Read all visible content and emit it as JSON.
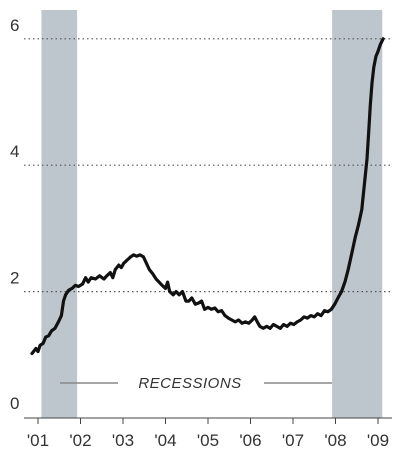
{
  "chart_data": {
    "type": "line",
    "title": "",
    "xlabel": "",
    "ylabel": "",
    "ylim": [
      0,
      6.2
    ],
    "xlim": [
      2000.9,
      2009.25
    ],
    "grid": "dotted horizontal lines at y-ticks 2, 4, 6",
    "y_ticks": [
      {
        "value": 0,
        "label": "0"
      },
      {
        "value": 2,
        "label": "2"
      },
      {
        "value": 4,
        "label": "4"
      },
      {
        "value": 6,
        "label": "6"
      }
    ],
    "x_ticks": [
      {
        "value": 2001,
        "label": "'01"
      },
      {
        "value": 2002,
        "label": "'02"
      },
      {
        "value": 2003,
        "label": "'03"
      },
      {
        "value": 2004,
        "label": "'04"
      },
      {
        "value": 2005,
        "label": "'05"
      },
      {
        "value": 2006,
        "label": "'06"
      },
      {
        "value": 2007,
        "label": "'07"
      },
      {
        "value": 2008,
        "label": "'08"
      },
      {
        "value": 2009,
        "label": "'09"
      }
    ],
    "recessions": [
      {
        "start": 2001.08,
        "end": 2001.92
      },
      {
        "start": 2007.92,
        "end": 2009.1
      }
    ],
    "recession_label": "RECESSIONS",
    "colors": {
      "line": "#111111",
      "recession": "#bcc6cc",
      "grid": "#555555",
      "text": "#333333"
    },
    "series": [
      {
        "values": [
          [
            2000.86,
            1.02
          ],
          [
            2000.95,
            1.1
          ],
          [
            2001.0,
            1.05
          ],
          [
            2001.05,
            1.15
          ],
          [
            2001.12,
            1.18
          ],
          [
            2001.18,
            1.28
          ],
          [
            2001.25,
            1.3
          ],
          [
            2001.32,
            1.38
          ],
          [
            2001.4,
            1.42
          ],
          [
            2001.48,
            1.52
          ],
          [
            2001.55,
            1.62
          ],
          [
            2001.6,
            1.85
          ],
          [
            2001.65,
            1.95
          ],
          [
            2001.72,
            2.02
          ],
          [
            2001.8,
            2.05
          ],
          [
            2001.88,
            2.1
          ],
          [
            2001.95,
            2.08
          ],
          [
            2002.05,
            2.12
          ],
          [
            2002.12,
            2.22
          ],
          [
            2002.18,
            2.15
          ],
          [
            2002.25,
            2.22
          ],
          [
            2002.35,
            2.2
          ],
          [
            2002.45,
            2.25
          ],
          [
            2002.55,
            2.2
          ],
          [
            2002.62,
            2.25
          ],
          [
            2002.7,
            2.3
          ],
          [
            2002.76,
            2.22
          ],
          [
            2002.82,
            2.35
          ],
          [
            2002.9,
            2.42
          ],
          [
            2002.96,
            2.38
          ],
          [
            2003.02,
            2.45
          ],
          [
            2003.1,
            2.5
          ],
          [
            2003.18,
            2.55
          ],
          [
            2003.25,
            2.58
          ],
          [
            2003.32,
            2.56
          ],
          [
            2003.4,
            2.58
          ],
          [
            2003.48,
            2.55
          ],
          [
            2003.55,
            2.45
          ],
          [
            2003.62,
            2.35
          ],
          [
            2003.7,
            2.28
          ],
          [
            2003.78,
            2.2
          ],
          [
            2003.85,
            2.15
          ],
          [
            2003.92,
            2.1
          ],
          [
            2004.0,
            2.05
          ],
          [
            2004.05,
            2.15
          ],
          [
            2004.1,
            2.0
          ],
          [
            2004.18,
            1.95
          ],
          [
            2004.25,
            2.0
          ],
          [
            2004.32,
            1.95
          ],
          [
            2004.4,
            2.0
          ],
          [
            2004.48,
            1.85
          ],
          [
            2004.55,
            1.85
          ],
          [
            2004.62,
            1.9
          ],
          [
            2004.7,
            1.8
          ],
          [
            2004.78,
            1.82
          ],
          [
            2004.85,
            1.85
          ],
          [
            2004.92,
            1.72
          ],
          [
            2005.0,
            1.75
          ],
          [
            2005.08,
            1.72
          ],
          [
            2005.16,
            1.74
          ],
          [
            2005.24,
            1.68
          ],
          [
            2005.32,
            1.7
          ],
          [
            2005.4,
            1.62
          ],
          [
            2005.48,
            1.58
          ],
          [
            2005.56,
            1.55
          ],
          [
            2005.64,
            1.52
          ],
          [
            2005.72,
            1.55
          ],
          [
            2005.8,
            1.5
          ],
          [
            2005.88,
            1.52
          ],
          [
            2005.96,
            1.5
          ],
          [
            2006.04,
            1.55
          ],
          [
            2006.1,
            1.6
          ],
          [
            2006.16,
            1.52
          ],
          [
            2006.22,
            1.45
          ],
          [
            2006.3,
            1.42
          ],
          [
            2006.38,
            1.45
          ],
          [
            2006.46,
            1.42
          ],
          [
            2006.54,
            1.48
          ],
          [
            2006.62,
            1.45
          ],
          [
            2006.7,
            1.42
          ],
          [
            2006.78,
            1.48
          ],
          [
            2006.86,
            1.45
          ],
          [
            2006.94,
            1.5
          ],
          [
            2007.02,
            1.48
          ],
          [
            2007.1,
            1.52
          ],
          [
            2007.18,
            1.55
          ],
          [
            2007.26,
            1.6
          ],
          [
            2007.34,
            1.58
          ],
          [
            2007.42,
            1.62
          ],
          [
            2007.5,
            1.6
          ],
          [
            2007.58,
            1.65
          ],
          [
            2007.66,
            1.62
          ],
          [
            2007.74,
            1.7
          ],
          [
            2007.82,
            1.68
          ],
          [
            2007.9,
            1.72
          ],
          [
            2007.98,
            1.8
          ],
          [
            2008.06,
            1.9
          ],
          [
            2008.14,
            2.0
          ],
          [
            2008.22,
            2.15
          ],
          [
            2008.3,
            2.35
          ],
          [
            2008.38,
            2.6
          ],
          [
            2008.46,
            2.85
          ],
          [
            2008.54,
            3.05
          ],
          [
            2008.62,
            3.3
          ],
          [
            2008.68,
            3.7
          ],
          [
            2008.74,
            4.1
          ],
          [
            2008.78,
            4.5
          ],
          [
            2008.82,
            4.95
          ],
          [
            2008.86,
            5.3
          ],
          [
            2008.9,
            5.55
          ],
          [
            2008.95,
            5.72
          ],
          [
            2009.0,
            5.8
          ],
          [
            2009.05,
            5.9
          ],
          [
            2009.12,
            6.0
          ]
        ]
      }
    ]
  }
}
